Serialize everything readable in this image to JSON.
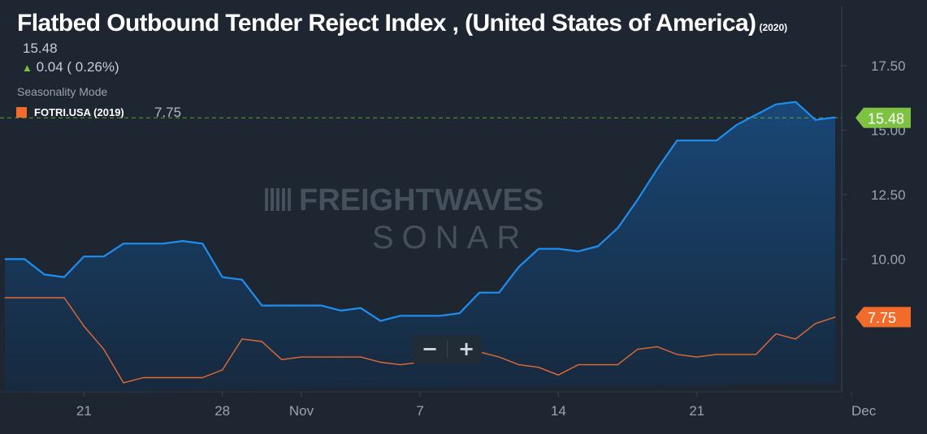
{
  "header": {
    "title": "Flatbed Outbound Tender Reject Index , (United States of America)",
    "title_suffix": "(2020)",
    "current_value": "15.48",
    "change_arrow": "▲",
    "change_text": "0.04 ( 0.26%)",
    "mode_label": "Seasonality Mode",
    "legend_label": "FOTRI.USA (2019)",
    "legend_value": "7.75"
  },
  "watermark": {
    "line1": "FREIGHTWAVES",
    "line2": "SONAR"
  },
  "zoom": {
    "minus": "−",
    "plus": "+"
  },
  "chart_data": {
    "type": "area",
    "x": [
      "Oct 17",
      "Oct 18",
      "Oct 19",
      "Oct 20",
      "Oct 21",
      "Oct 22",
      "Oct 23",
      "Oct 24",
      "Oct 25",
      "Oct 26",
      "Oct 27",
      "Oct 28",
      "Oct 29",
      "Oct 30",
      "Oct 31",
      "Nov 1",
      "Nov 2",
      "Nov 3",
      "Nov 4",
      "Nov 5",
      "Nov 6",
      "Nov 7",
      "Nov 8",
      "Nov 9",
      "Nov 10",
      "Nov 11",
      "Nov 12",
      "Nov 13",
      "Nov 14",
      "Nov 15",
      "Nov 16",
      "Nov 17",
      "Nov 18",
      "Nov 19",
      "Nov 20",
      "Nov 21",
      "Nov 22",
      "Nov 23",
      "Nov 24",
      "Nov 25",
      "Nov 26",
      "Nov 27",
      "Nov 28"
    ],
    "x_ticks": [
      "21",
      "28",
      "Nov",
      "7",
      "14",
      "21",
      "Dec"
    ],
    "series": [
      {
        "name": "",
        "color": "#1e8ff0",
        "values": [
          10.0,
          10.0,
          9.4,
          9.3,
          10.1,
          10.1,
          10.6,
          10.6,
          10.6,
          10.7,
          10.6,
          9.3,
          9.2,
          8.2,
          8.2,
          8.2,
          8.2,
          8.0,
          8.1,
          7.6,
          7.8,
          7.8,
          7.8,
          7.9,
          8.7,
          8.7,
          9.7,
          10.4,
          10.4,
          10.3,
          10.5,
          11.2,
          12.3,
          13.5,
          14.6,
          14.6,
          14.6,
          15.2,
          15.6,
          16.0,
          16.1,
          15.4,
          15.5
        ]
      },
      {
        "name": "FOTRI.USA (2019)",
        "color": "#e46a33",
        "values": [
          8.5,
          8.5,
          8.5,
          8.5,
          7.4,
          6.5,
          5.2,
          5.4,
          5.4,
          5.4,
          5.4,
          5.7,
          6.9,
          6.8,
          6.1,
          6.2,
          6.2,
          6.2,
          6.2,
          6.0,
          5.9,
          6.0,
          6.4,
          6.4,
          6.4,
          6.2,
          5.9,
          5.8,
          5.5,
          5.9,
          5.9,
          5.9,
          6.5,
          6.6,
          6.3,
          6.2,
          6.3,
          6.3,
          6.3,
          7.1,
          6.9,
          7.5,
          7.75
        ]
      }
    ],
    "ylim": [
      4.85,
      19.8
    ],
    "y_ticks": [
      "10.00",
      "12.50",
      "15.00",
      "17.50"
    ],
    "last_labels": [
      {
        "text": "15.48",
        "color": "#7dc243",
        "value": 15.48
      },
      {
        "text": "7.75",
        "color": "#f26b2b",
        "value": 7.75
      }
    ],
    "grid": false
  }
}
